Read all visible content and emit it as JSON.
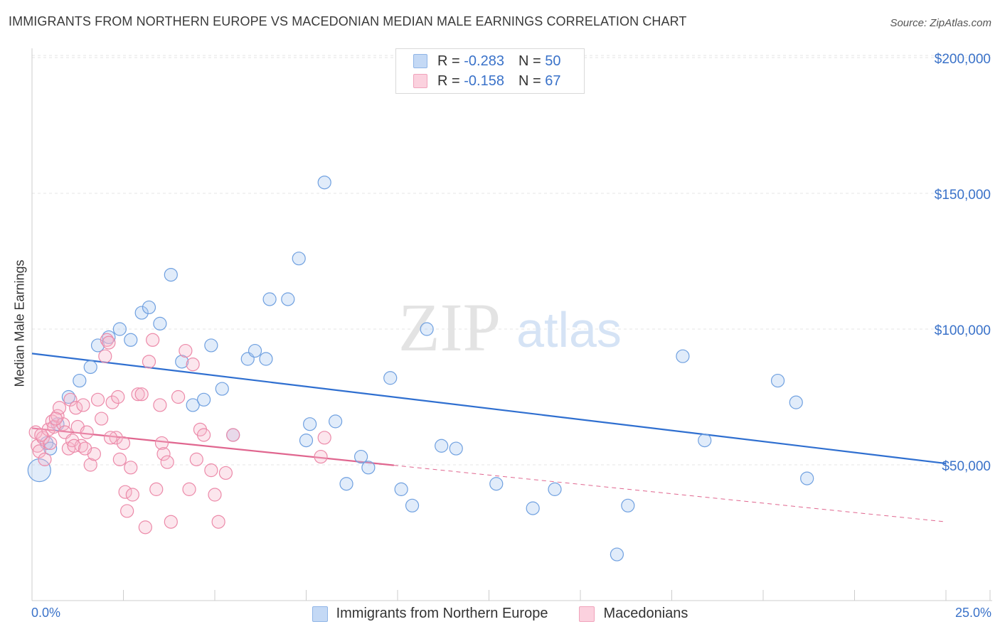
{
  "title": "IMMIGRANTS FROM NORTHERN EUROPE VS MACEDONIAN MEDIAN MALE EARNINGS CORRELATION CHART",
  "source": "Source: ZipAtlas.com",
  "watermark": {
    "zip": "ZIP",
    "atlas": "atlas"
  },
  "legend": {
    "r_label": "R =",
    "n_label": "N =",
    "series1": {
      "r": "-0.283",
      "n": "50",
      "color": "#a9c8f0"
    },
    "series2": {
      "r": "-0.158",
      "n": "67",
      "color": "#f6b8cc"
    }
  },
  "bottom_legend": {
    "series1": "Immigrants from Northern Europe",
    "series2": "Macedonians"
  },
  "chart_data": {
    "type": "scatter",
    "title": "IMMIGRANTS FROM NORTHERN EUROPE VS MACEDONIAN MEDIAN MALE EARNINGS CORRELATION CHART",
    "xlabel": "",
    "ylabel": "Median Male Earnings",
    "xlim": [
      0,
      25
    ],
    "ylim": [
      0,
      205000
    ],
    "x_tick_labels": [
      "0.0%",
      "25.0%"
    ],
    "y_ticks": [
      50000,
      100000,
      150000,
      200000
    ],
    "y_tick_labels": [
      "$50,000",
      "$100,000",
      "$150,000",
      "$200,000"
    ],
    "series": [
      {
        "name": "Immigrants from Northern Europe",
        "color": "#6fa0e0",
        "trend": {
          "x0": 0,
          "y0": 91000,
          "x1": 25,
          "y1": 50500,
          "dashed_from": null
        },
        "points": [
          [
            0.2,
            48000,
            "L"
          ],
          [
            0.4,
            58000
          ],
          [
            0.7,
            65000
          ],
          [
            1.0,
            75000
          ],
          [
            1.3,
            81000
          ],
          [
            1.6,
            86000
          ],
          [
            1.8,
            94000
          ],
          [
            2.1,
            97000
          ],
          [
            2.4,
            100000
          ],
          [
            2.7,
            96000
          ],
          [
            3.0,
            106000
          ],
          [
            3.2,
            108000
          ],
          [
            3.5,
            102000
          ],
          [
            3.8,
            120000
          ],
          [
            4.1,
            88000
          ],
          [
            4.4,
            72000
          ],
          [
            4.7,
            74000
          ],
          [
            4.9,
            94000
          ],
          [
            5.2,
            78000
          ],
          [
            5.5,
            61000
          ],
          [
            5.9,
            89000
          ],
          [
            6.1,
            92000
          ],
          [
            6.4,
            89000
          ],
          [
            6.5,
            111000
          ],
          [
            7.0,
            111000
          ],
          [
            7.3,
            126000
          ],
          [
            7.5,
            59000
          ],
          [
            7.6,
            65000
          ],
          [
            8.0,
            154000
          ],
          [
            8.3,
            66000
          ],
          [
            8.6,
            43000
          ],
          [
            9.0,
            53000
          ],
          [
            9.2,
            49000
          ],
          [
            9.8,
            82000
          ],
          [
            10.1,
            41000
          ],
          [
            10.4,
            35000
          ],
          [
            10.8,
            100000
          ],
          [
            11.2,
            57000
          ],
          [
            11.6,
            56000
          ],
          [
            12.7,
            43000
          ],
          [
            13.7,
            34000
          ],
          [
            14.3,
            41000
          ],
          [
            16.3,
            35000
          ],
          [
            16.0,
            17000
          ],
          [
            17.8,
            90000
          ],
          [
            18.4,
            59000
          ],
          [
            20.4,
            81000
          ],
          [
            20.9,
            73000
          ],
          [
            21.2,
            45000
          ],
          [
            0.5,
            56000
          ]
        ]
      },
      {
        "name": "Macedonians",
        "color": "#ec8aa9",
        "trend": {
          "x0": 0,
          "y0": 63500,
          "x1": 25,
          "y1": 29000,
          "dashed_from": 9.9
        },
        "points": [
          [
            0.1,
            62000
          ],
          [
            0.15,
            57000
          ],
          [
            0.2,
            55000
          ],
          [
            0.3,
            60000
          ],
          [
            0.35,
            52000
          ],
          [
            0.45,
            63000
          ],
          [
            0.5,
            58000
          ],
          [
            0.55,
            66000
          ],
          [
            0.6,
            64000
          ],
          [
            0.7,
            68000
          ],
          [
            0.75,
            71000
          ],
          [
            0.85,
            65000
          ],
          [
            0.9,
            62000
          ],
          [
            1.0,
            56000
          ],
          [
            1.05,
            74000
          ],
          [
            1.1,
            59000
          ],
          [
            1.2,
            71000
          ],
          [
            1.25,
            64000
          ],
          [
            1.35,
            57000
          ],
          [
            1.4,
            72000
          ],
          [
            1.5,
            62000
          ],
          [
            1.6,
            50000
          ],
          [
            1.7,
            54000
          ],
          [
            1.8,
            74000
          ],
          [
            1.9,
            67000
          ],
          [
            2.0,
            90000
          ],
          [
            2.05,
            96000
          ],
          [
            2.1,
            95000
          ],
          [
            2.2,
            73000
          ],
          [
            2.3,
            60000
          ],
          [
            2.35,
            75000
          ],
          [
            2.4,
            52000
          ],
          [
            2.5,
            58000
          ],
          [
            2.55,
            40000
          ],
          [
            2.6,
            33000
          ],
          [
            2.7,
            49000
          ],
          [
            2.75,
            39000
          ],
          [
            2.9,
            76000
          ],
          [
            3.0,
            76000
          ],
          [
            3.1,
            27000
          ],
          [
            3.2,
            88000
          ],
          [
            3.3,
            96000
          ],
          [
            3.4,
            41000
          ],
          [
            3.5,
            72000
          ],
          [
            3.55,
            58000
          ],
          [
            3.6,
            54000
          ],
          [
            3.7,
            51000
          ],
          [
            3.8,
            29000
          ],
          [
            4.0,
            75000
          ],
          [
            4.2,
            92000
          ],
          [
            4.3,
            41000
          ],
          [
            4.4,
            87000
          ],
          [
            4.5,
            52000
          ],
          [
            4.6,
            63000
          ],
          [
            4.7,
            61000
          ],
          [
            4.9,
            48000
          ],
          [
            5.0,
            39000
          ],
          [
            5.1,
            29000
          ],
          [
            5.3,
            47000
          ],
          [
            5.5,
            61000
          ],
          [
            7.9,
            53000
          ],
          [
            8.0,
            60000
          ],
          [
            1.15,
            57000
          ],
          [
            0.65,
            67000
          ],
          [
            1.45,
            56000
          ],
          [
            2.15,
            60000
          ],
          [
            0.25,
            61000
          ]
        ]
      }
    ]
  }
}
